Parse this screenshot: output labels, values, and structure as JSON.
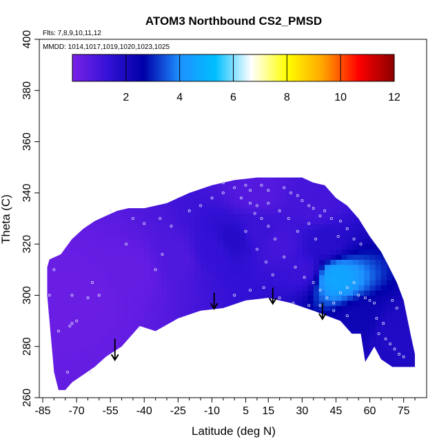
{
  "chart_data": {
    "type": "heatmap",
    "title": "ATOM3 Northbound CS2_PMSD",
    "subtitle_lines": [
      "Flts: 7,8,9,10,11,12",
      "MMDD: 1014,1017,1019,1020,1023,1025"
    ],
    "xlabel": "Latitude (deg N)",
    "ylabel": "Theta (C)",
    "xlim": [
      -85,
      80
    ],
    "ylim": [
      260,
      400
    ],
    "x_ticks": [
      -85,
      -70,
      -55,
      -40,
      -25,
      -10,
      5,
      15,
      30,
      45,
      60,
      75
    ],
    "x_ticks_minor": [
      -80,
      -75,
      -65,
      -60,
      -50,
      -45,
      -35,
      -30,
      -20,
      -15,
      -5,
      0,
      10,
      20,
      25,
      35,
      40,
      50,
      55,
      65,
      70,
      80
    ],
    "y_ticks": [
      260,
      280,
      300,
      320,
      340,
      360,
      380,
      400
    ],
    "colorbar": {
      "range": [
        0,
        12
      ],
      "ticks": [
        2,
        4,
        6,
        8,
        10,
        12
      ],
      "gridlines": [
        2,
        4,
        6,
        8,
        10
      ],
      "colors": [
        "#7a22e8",
        "#3311d5",
        "#0000a8",
        "#1e90ff",
        "#00bfff",
        "#ffffff",
        "#ffff00",
        "#ffa500",
        "#ff0000",
        "#8b0000"
      ]
    },
    "coverage_top": [
      [
        -83,
        311
      ],
      [
        -82,
        314
      ],
      [
        -77,
        316
      ],
      [
        -72,
        322
      ],
      [
        -67,
        326
      ],
      [
        -62,
        329
      ],
      [
        -57,
        331
      ],
      [
        -52,
        333
      ],
      [
        -47,
        334
      ],
      [
        -40,
        334
      ],
      [
        -30,
        336
      ],
      [
        -20,
        340
      ],
      [
        -10,
        343
      ],
      [
        0,
        345
      ],
      [
        10,
        346
      ],
      [
        20,
        346
      ],
      [
        30,
        346
      ],
      [
        35,
        344
      ],
      [
        40,
        343
      ],
      [
        45,
        338
      ],
      [
        50,
        335
      ],
      [
        55,
        330
      ],
      [
        60,
        323
      ],
      [
        65,
        317
      ],
      [
        68,
        312
      ],
      [
        72,
        305
      ],
      [
        75,
        298
      ],
      [
        78,
        285
      ],
      [
        80,
        277
      ],
      [
        80,
        272
      ]
    ],
    "coverage_bottom": [
      [
        80,
        272
      ],
      [
        70,
        272
      ],
      [
        65,
        275
      ],
      [
        62,
        280
      ],
      [
        58,
        274
      ],
      [
        56,
        285
      ],
      [
        52,
        285
      ],
      [
        47,
        290
      ],
      [
        35,
        294
      ],
      [
        25,
        297
      ],
      [
        15,
        299
      ],
      [
        5,
        298
      ],
      [
        -5,
        295
      ],
      [
        -15,
        294
      ],
      [
        -25,
        291
      ],
      [
        -35,
        286
      ],
      [
        -42,
        288
      ],
      [
        -50,
        280
      ],
      [
        -57,
        276
      ],
      [
        -62,
        272
      ],
      [
        -67,
        269
      ],
      [
        -72,
        266
      ],
      [
        -75,
        263
      ],
      [
        -78,
        263
      ],
      [
        -80,
        270
      ],
      [
        -81,
        280
      ],
      [
        -82,
        290
      ],
      [
        -83,
        300
      ],
      [
        -83,
        311
      ]
    ],
    "fields": [
      {
        "lat": -80,
        "theta": 300,
        "value": 0.3
      },
      {
        "lat": -65,
        "theta": 300,
        "value": 0.3
      },
      {
        "lat": -45,
        "theta": 310,
        "value": 0.4
      },
      {
        "lat": -25,
        "theta": 315,
        "value": 0.8
      },
      {
        "lat": -10,
        "theta": 318,
        "value": 1.3
      },
      {
        "lat": 0,
        "theta": 322,
        "value": 1.7
      },
      {
        "lat": 10,
        "theta": 325,
        "value": 1.2
      },
      {
        "lat": 20,
        "theta": 320,
        "value": 1.0
      },
      {
        "lat": 30,
        "theta": 310,
        "value": 1.2
      },
      {
        "lat": 40,
        "theta": 320,
        "value": 1.6
      },
      {
        "lat": 45,
        "theta": 307,
        "value": 4.6
      },
      {
        "lat": 55,
        "theta": 290,
        "value": 2.3
      },
      {
        "lat": 70,
        "theta": 285,
        "value": 1.8
      },
      {
        "lat": 10,
        "theta": 340,
        "value": 0.7
      },
      {
        "lat": 35,
        "theta": 335,
        "value": 1.0
      }
    ],
    "sample_points": [
      [
        -55,
        333
      ],
      [
        -45,
        330
      ],
      [
        -40,
        328
      ],
      [
        -33,
        330
      ],
      [
        -28,
        327
      ],
      [
        -20,
        333
      ],
      [
        -48,
        320
      ],
      [
        -32,
        316
      ],
      [
        -35,
        310
      ],
      [
        -60,
        300
      ],
      [
        -65,
        299
      ],
      [
        -63,
        305
      ],
      [
        -42,
        287
      ],
      [
        -70,
        290
      ],
      [
        -73,
        288
      ],
      [
        -78,
        286
      ],
      [
        -74,
        270
      ],
      [
        -64,
        270
      ],
      [
        -72,
        289
      ],
      [
        -72,
        300
      ],
      [
        -80,
        310
      ],
      [
        -82,
        300
      ],
      [
        -5,
        344
      ],
      [
        0,
        342
      ],
      [
        5,
        343
      ],
      [
        7,
        341
      ],
      [
        12,
        343
      ],
      [
        15,
        341
      ],
      [
        22,
        342
      ],
      [
        25,
        340
      ],
      [
        28,
        339
      ],
      [
        30,
        337
      ],
      [
        33,
        335
      ],
      [
        35,
        334
      ],
      [
        38,
        331
      ],
      [
        40,
        333
      ],
      [
        43,
        330
      ],
      [
        47,
        329
      ],
      [
        50,
        326
      ],
      [
        53,
        322
      ],
      [
        56,
        320
      ],
      [
        10,
        335
      ],
      [
        12,
        330
      ],
      [
        15,
        327
      ],
      [
        18,
        322
      ],
      [
        22,
        315
      ],
      [
        27,
        311
      ],
      [
        31,
        307
      ],
      [
        35,
        305
      ],
      [
        38,
        302
      ],
      [
        41,
        299
      ],
      [
        44,
        297
      ],
      [
        47,
        301
      ],
      [
        50,
        303
      ],
      [
        53,
        305
      ],
      [
        55,
        300
      ],
      [
        58,
        299
      ],
      [
        60,
        298
      ],
      [
        62,
        297
      ],
      [
        63,
        291
      ],
      [
        66,
        289
      ],
      [
        64,
        285
      ],
      [
        67,
        283
      ],
      [
        69,
        281
      ],
      [
        71,
        279
      ],
      [
        73,
        277
      ],
      [
        75,
        276
      ],
      [
        70,
        298
      ],
      [
        72,
        295
      ],
      [
        0,
        300
      ],
      [
        7,
        302
      ],
      [
        13,
        303
      ],
      [
        20,
        299
      ],
      [
        26,
        297
      ],
      [
        33,
        296
      ],
      [
        38,
        296
      ],
      [
        44,
        294
      ],
      [
        50,
        292
      ],
      [
        5,
        325
      ],
      [
        10,
        318
      ],
      [
        14,
        313
      ],
      [
        17,
        308
      ],
      [
        -10,
        338
      ],
      [
        -15,
        335
      ],
      [
        -5,
        340
      ],
      [
        3,
        338
      ],
      [
        7,
        336
      ],
      [
        9,
        332
      ],
      [
        15,
        336
      ],
      [
        20,
        333
      ],
      [
        24,
        330
      ],
      [
        28,
        325
      ],
      [
        33,
        328
      ],
      [
        36,
        322
      ],
      [
        46,
        323
      ]
    ],
    "arrows": [
      {
        "lat": -53,
        "theta_from": 283,
        "theta_to": 275
      },
      {
        "lat": -9,
        "theta_from": 301,
        "theta_to": 295
      },
      {
        "lat": 17,
        "theta_from": 303,
        "theta_to": 297
      },
      {
        "lat": 39,
        "theta_from": 297,
        "theta_to": 291
      }
    ]
  }
}
